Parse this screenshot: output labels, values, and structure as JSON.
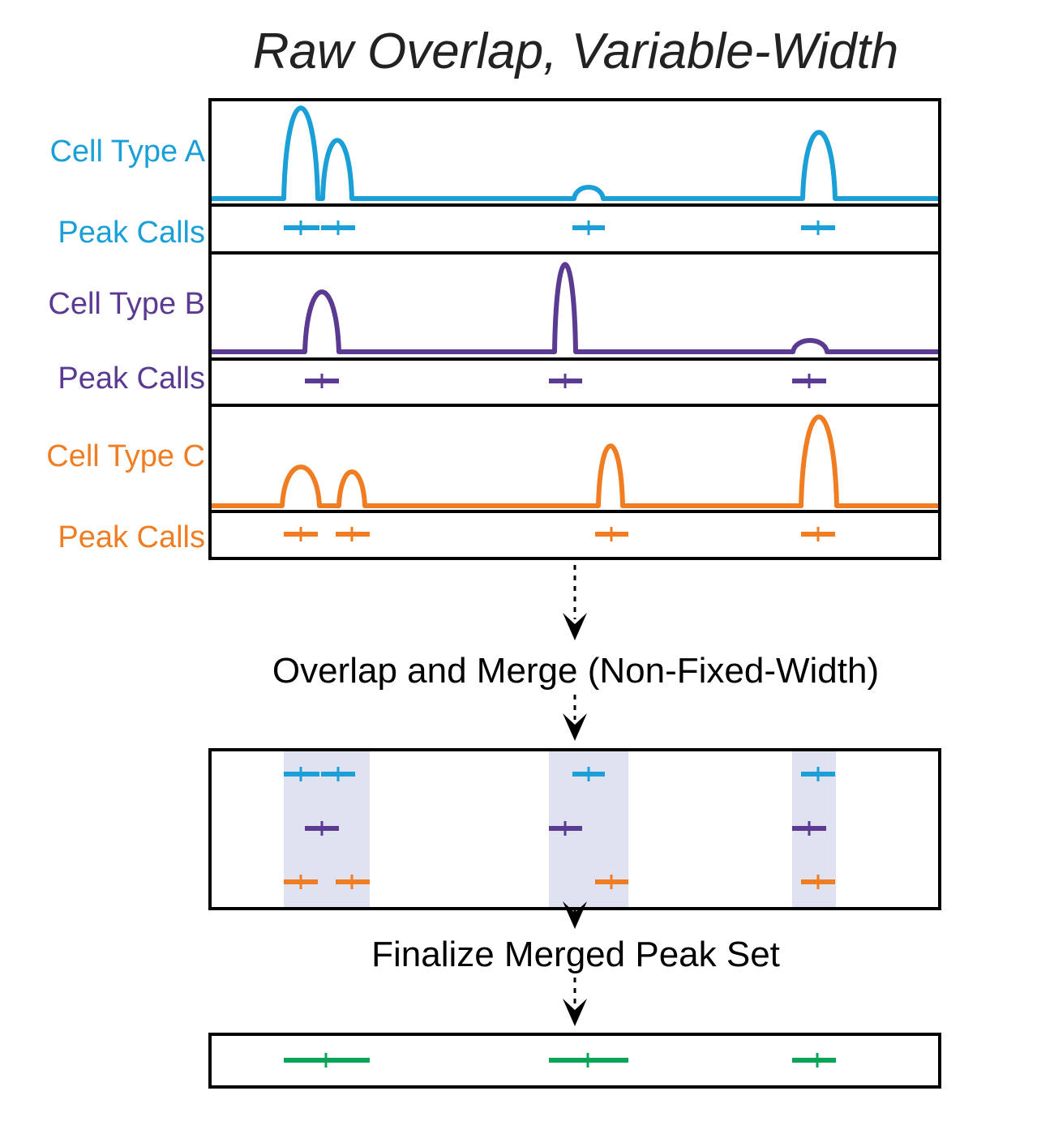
{
  "title": "Raw Overlap, Variable-Width",
  "colors": {
    "cell_a": "#1a9fd6",
    "cell_b": "#5b3a92",
    "cell_c": "#f07d22",
    "merged": "#0aa455",
    "region": "#dfe2f0",
    "frame": "#000000"
  },
  "tracks": [
    {
      "id": "a",
      "signal_label": "Cell Type A",
      "calls_label": "Peak Calls",
      "color_key": "cell_a",
      "peaks": [
        {
          "start": 350,
          "end": 392,
          "height": 112
        },
        {
          "start": 398,
          "end": 434,
          "height": 72
        },
        {
          "start": 708,
          "end": 744,
          "height": 14
        },
        {
          "start": 990,
          "end": 1030,
          "height": 82
        }
      ],
      "calls": [
        {
          "start": 350,
          "end": 394,
          "summit": 371
        },
        {
          "start": 396,
          "end": 438,
          "summit": 417
        },
        {
          "start": 706,
          "end": 746,
          "summit": 726
        },
        {
          "start": 988,
          "end": 1030,
          "summit": 1009
        }
      ]
    },
    {
      "id": "b",
      "signal_label": "Cell Type B",
      "calls_label": "Peak Calls",
      "color_key": "cell_b",
      "peaks": [
        {
          "start": 376,
          "end": 418,
          "height": 74
        },
        {
          "start": 684,
          "end": 710,
          "height": 108
        },
        {
          "start": 978,
          "end": 1020,
          "height": 14
        }
      ],
      "calls": [
        {
          "start": 376,
          "end": 418,
          "summit": 397
        },
        {
          "start": 677,
          "end": 718,
          "summit": 697
        },
        {
          "start": 977,
          "end": 1019,
          "summit": 998
        }
      ]
    },
    {
      "id": "c",
      "signal_label": "Cell Type C",
      "calls_label": "Peak Calls",
      "color_key": "cell_c",
      "peaks": [
        {
          "start": 348,
          "end": 394,
          "height": 48
        },
        {
          "start": 418,
          "end": 450,
          "height": 42
        },
        {
          "start": 738,
          "end": 768,
          "height": 74
        },
        {
          "start": 988,
          "end": 1032,
          "height": 110
        }
      ],
      "calls": [
        {
          "start": 350,
          "end": 392,
          "summit": 371
        },
        {
          "start": 414,
          "end": 456,
          "summit": 434
        },
        {
          "start": 734,
          "end": 775,
          "summit": 754
        },
        {
          "start": 988,
          "end": 1030,
          "summit": 1009
        }
      ]
    }
  ],
  "step1_label": "Overlap and Merge (Non-Fixed-Width)",
  "merge_regions": [
    {
      "start": 350,
      "end": 456
    },
    {
      "start": 677,
      "end": 775
    },
    {
      "start": 977,
      "end": 1031
    }
  ],
  "step2_label": "Finalize Merged Peak Set",
  "final_calls": [
    {
      "start": 350,
      "end": 456,
      "summit": 402
    },
    {
      "start": 677,
      "end": 775,
      "summit": 725
    },
    {
      "start": 977,
      "end": 1031,
      "summit": 1008
    }
  ]
}
